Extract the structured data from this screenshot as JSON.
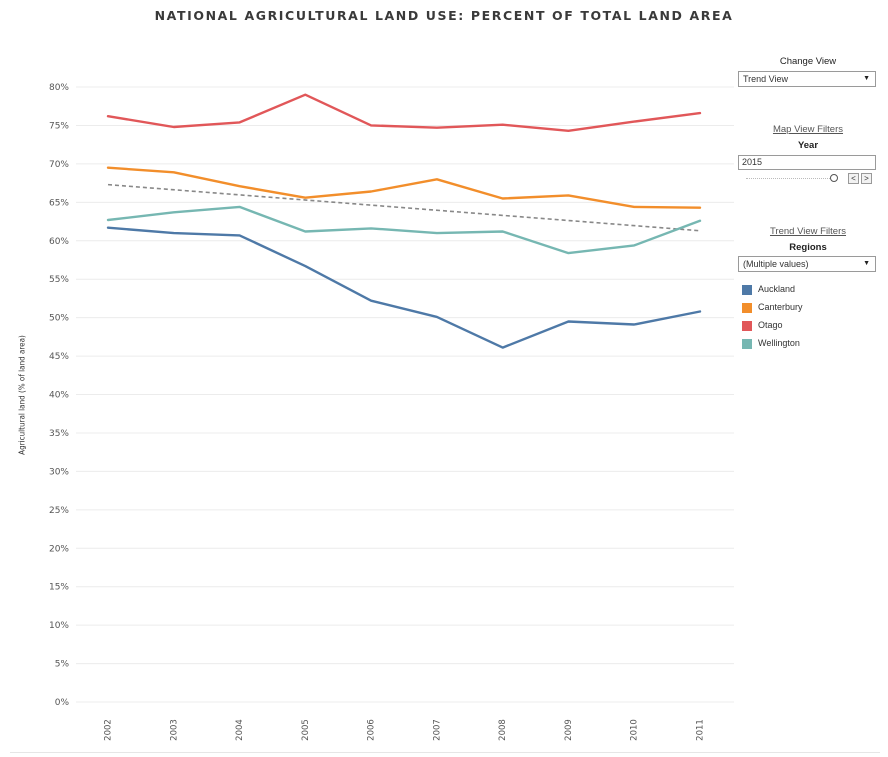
{
  "title": "NATIONAL AGRICULTURAL LAND USE: PERCENT OF TOTAL LAND AREA",
  "sidebar": {
    "change_view_label": "Change View",
    "change_view_value": "Trend View",
    "map_filters_label": "Map View Filters",
    "year_label": "Year",
    "year_value": "2015",
    "trend_filters_label": "Trend View Filters",
    "regions_label": "Regions",
    "regions_value": "(Multiple values)",
    "prev_label": "<",
    "next_label": ">"
  },
  "legend": [
    {
      "name": "Auckland",
      "color": "#4e79a7"
    },
    {
      "name": "Canterbury",
      "color": "#f28e2b"
    },
    {
      "name": "Otago",
      "color": "#e15759"
    },
    {
      "name": "Wellington",
      "color": "#76b7b2"
    }
  ],
  "chart_data": {
    "type": "line",
    "title": "NATIONAL AGRICULTURAL LAND USE: PERCENT OF TOTAL LAND AREA",
    "xlabel": "",
    "ylabel": "Agricultural land (% of land area)",
    "x": [
      "2002",
      "2003",
      "2004",
      "2005",
      "2006",
      "2007",
      "2008",
      "2009",
      "2010",
      "2011"
    ],
    "ylim": [
      0,
      80
    ],
    "yticks": [
      0,
      5,
      10,
      15,
      20,
      25,
      30,
      35,
      40,
      45,
      50,
      55,
      60,
      65,
      70,
      75,
      80
    ],
    "ytick_suffix": "%",
    "grid": true,
    "legend_position": "right",
    "series": [
      {
        "name": "Auckland",
        "color": "#4e79a7",
        "values": [
          61.7,
          61.0,
          60.7,
          56.7,
          52.2,
          50.1,
          46.1,
          49.5,
          49.1,
          50.8
        ]
      },
      {
        "name": "Canterbury",
        "color": "#f28e2b",
        "values": [
          69.5,
          68.9,
          67.1,
          65.6,
          66.4,
          68.0,
          65.5,
          65.9,
          64.4,
          64.3
        ]
      },
      {
        "name": "Otago",
        "color": "#e15759",
        "values": [
          76.2,
          74.8,
          75.4,
          79.0,
          75.0,
          74.7,
          75.1,
          74.3,
          75.5,
          76.6
        ]
      },
      {
        "name": "Wellington",
        "color": "#76b7b2",
        "values": [
          62.7,
          63.7,
          64.4,
          61.2,
          61.6,
          61.0,
          61.2,
          58.4,
          59.4,
          62.6
        ]
      }
    ],
    "trend_line": {
      "values": [
        67.3,
        61.3
      ],
      "color": "#888888",
      "style": "dashed"
    }
  }
}
